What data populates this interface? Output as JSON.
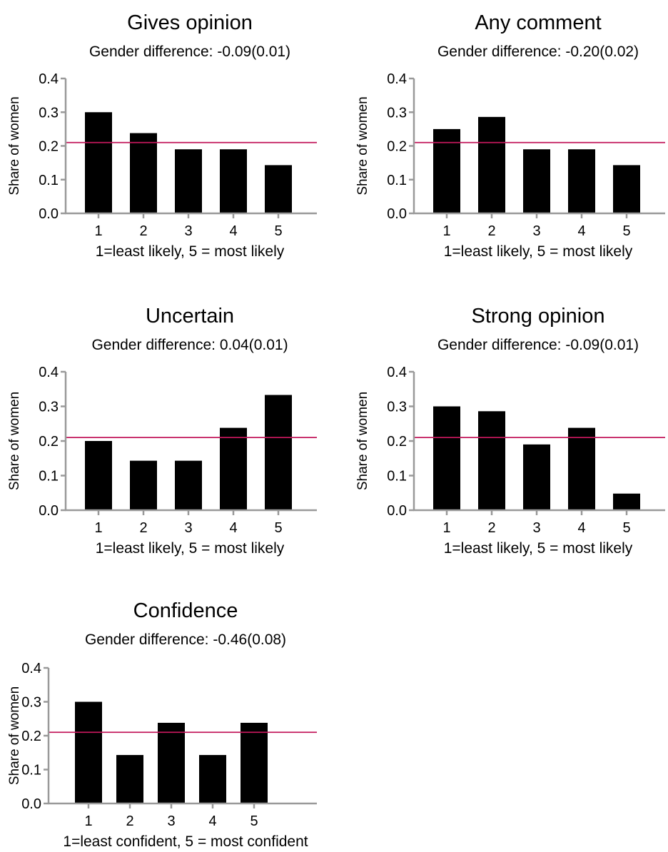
{
  "chart_data": [
    {
      "type": "bar",
      "title": "Gives opinion",
      "subtitle": "Gender difference: -0.09(0.01)",
      "xlabel": "1=least likely, 5 = most likely",
      "ylabel": "Share of women",
      "categories": [
        "1",
        "2",
        "3",
        "4",
        "5"
      ],
      "values": [
        0.3,
        0.238,
        0.19,
        0.19,
        0.143
      ],
      "ylim": [
        0,
        0.4
      ],
      "yticks": [
        "0.0",
        "0.1",
        "0.2",
        "0.3",
        "0.4"
      ],
      "reference_line": 0.21,
      "bar_color": "#000000",
      "reference_color": "#c2185b"
    },
    {
      "type": "bar",
      "title": "Any comment",
      "subtitle": "Gender difference: -0.20(0.02)",
      "xlabel": "1=least likely, 5 = most likely",
      "ylabel": "Share of women",
      "categories": [
        "1",
        "2",
        "3",
        "4",
        "5"
      ],
      "values": [
        0.25,
        0.286,
        0.19,
        0.19,
        0.143
      ],
      "ylim": [
        0,
        0.4
      ],
      "yticks": [
        "0.0",
        "0.1",
        "0.2",
        "0.3",
        "0.4"
      ],
      "reference_line": 0.21,
      "bar_color": "#000000",
      "reference_color": "#c2185b"
    },
    {
      "type": "bar",
      "title": "Uncertain",
      "subtitle": "Gender difference: 0.04(0.01)",
      "xlabel": "1=least likely, 5 = most likely",
      "ylabel": "Share of women",
      "categories": [
        "1",
        "2",
        "3",
        "4",
        "5"
      ],
      "values": [
        0.2,
        0.143,
        0.143,
        0.238,
        0.333
      ],
      "ylim": [
        0,
        0.4
      ],
      "yticks": [
        "0.0",
        "0.1",
        "0.2",
        "0.3",
        "0.4"
      ],
      "reference_line": 0.21,
      "bar_color": "#000000",
      "reference_color": "#c2185b"
    },
    {
      "type": "bar",
      "title": "Strong opinion",
      "subtitle": "Gender difference: -0.09(0.01)",
      "xlabel": "1=least likely, 5 = most likely",
      "ylabel": "Share of women",
      "categories": [
        "1",
        "2",
        "3",
        "4",
        "5"
      ],
      "values": [
        0.3,
        0.286,
        0.19,
        0.238,
        0.048
      ],
      "ylim": [
        0,
        0.4
      ],
      "yticks": [
        "0.0",
        "0.1",
        "0.2",
        "0.3",
        "0.4"
      ],
      "reference_line": 0.21,
      "bar_color": "#000000",
      "reference_color": "#c2185b"
    },
    {
      "type": "bar",
      "title": "Confidence",
      "subtitle": "Gender difference: -0.46(0.08)",
      "xlabel": "1=least confident, 5 = most confident",
      "ylabel": "Share of women",
      "categories": [
        "1",
        "2",
        "3",
        "4",
        "5"
      ],
      "values": [
        0.3,
        0.143,
        0.238,
        0.143,
        0.238
      ],
      "ylim": [
        0,
        0.4
      ],
      "yticks": [
        "0.0",
        "0.1",
        "0.2",
        "0.3",
        "0.4"
      ],
      "reference_line": 0.21,
      "bar_color": "#000000",
      "reference_color": "#c2185b"
    }
  ]
}
